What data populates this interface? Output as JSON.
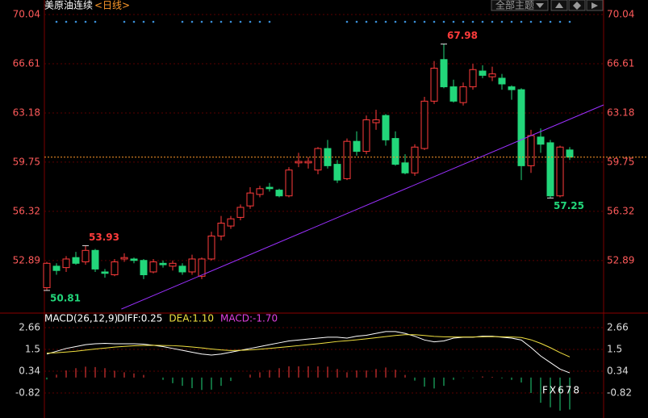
{
  "chart_data": [
    {
      "type": "candlestick",
      "title": "美原油连续",
      "subtitle": "<日线>",
      "ylim": [
        49.23,
        71.05
      ],
      "yticks": [
        52.89,
        56.32,
        59.75,
        63.18,
        66.61,
        70.04
      ],
      "up_color": "#ff3b3b",
      "down_color": "#22d67a",
      "open": [
        51.0,
        52.5,
        52.4,
        53.1,
        52.8,
        53.6,
        52.1,
        51.9,
        53.0,
        53.0,
        52.9,
        52.1,
        52.7,
        52.5,
        52.5,
        52.1,
        51.8,
        53.0,
        54.6,
        55.3,
        55.9,
        56.7,
        57.5,
        58.0,
        57.8,
        57.4,
        59.7,
        59.7,
        59.2,
        60.7,
        59.6,
        58.6,
        61.2,
        60.5,
        62.5,
        63.0,
        61.4,
        59.7,
        59.0,
        60.7,
        64.0,
        66.9,
        65.0,
        63.9,
        65.0,
        66.1,
        65.7,
        65.6,
        65.0,
        64.8,
        59.5,
        61.5,
        61.1,
        57.4,
        60.6
      ],
      "high": [
        52.8,
        52.7,
        53.2,
        53.5,
        53.93,
        53.7,
        52.3,
        53.0,
        53.4,
        53.1,
        53.0,
        53.0,
        52.9,
        52.9,
        52.7,
        53.3,
        53.1,
        54.9,
        56.0,
        56.0,
        56.8,
        58.0,
        58.1,
        58.3,
        57.9,
        59.4,
        60.4,
        60.1,
        60.8,
        61.3,
        59.9,
        61.4,
        61.9,
        63.0,
        63.4,
        63.1,
        61.9,
        60.3,
        61.0,
        64.3,
        66.8,
        67.98,
        65.5,
        65.3,
        66.6,
        66.5,
        66.4,
        65.9,
        65.1,
        64.9,
        62.0,
        62.1,
        61.3,
        60.9,
        60.8
      ],
      "low": [
        50.81,
        51.9,
        52.1,
        52.6,
        52.6,
        52.1,
        51.7,
        51.8,
        52.8,
        52.7,
        51.6,
        52.0,
        52.4,
        52.2,
        51.9,
        51.9,
        51.6,
        52.9,
        54.3,
        55.1,
        55.7,
        56.5,
        57.3,
        57.7,
        57.3,
        57.3,
        59.4,
        59.3,
        58.9,
        59.3,
        58.3,
        58.5,
        60.2,
        60.3,
        62.0,
        60.9,
        59.5,
        58.9,
        58.8,
        60.6,
        63.8,
        64.9,
        63.9,
        63.7,
        64.8,
        65.6,
        65.4,
        64.8,
        64.1,
        58.5,
        59.0,
        60.4,
        57.25,
        57.3,
        59.9
      ],
      "close": [
        52.7,
        52.2,
        53.0,
        52.7,
        53.6,
        52.3,
        52.0,
        52.8,
        53.1,
        52.9,
        51.9,
        52.8,
        52.6,
        52.7,
        52.1,
        53.0,
        53.0,
        54.6,
        55.5,
        55.8,
        56.6,
        57.6,
        57.9,
        57.9,
        57.4,
        59.2,
        59.8,
        59.8,
        60.7,
        59.5,
        58.5,
        61.2,
        60.5,
        62.7,
        62.7,
        61.3,
        59.6,
        59.0,
        60.8,
        64.0,
        66.3,
        65.0,
        64.0,
        65.0,
        66.2,
        65.8,
        65.9,
        65.2,
        64.8,
        59.5,
        61.6,
        61.0,
        57.4,
        60.8,
        60.1
      ],
      "extreme_labels": [
        67.98,
        57.25,
        53.93,
        50.81
      ],
      "trend_line": {
        "x": [
          7.7,
          57.5
        ],
        "y": [
          49.51,
          63.74
        ],
        "color": "#9b30ff"
      }
    },
    {
      "type": "macd",
      "title": "MACD(26,12,9)",
      "ylim": [
        -2.15,
        3.13
      ],
      "yticks": [
        -0.82,
        0.34,
        1.5,
        2.66
      ],
      "up_color": "#ff3b3b",
      "down_color": "#22d67a",
      "series": [
        {
          "name": "DIFF:0.25",
          "color": "#ffffff",
          "values": [
            1.25,
            1.4,
            1.55,
            1.65,
            1.75,
            1.8,
            1.82,
            1.8,
            1.8,
            1.8,
            1.78,
            1.72,
            1.65,
            1.55,
            1.45,
            1.35,
            1.25,
            1.2,
            1.25,
            1.35,
            1.45,
            1.55,
            1.65,
            1.75,
            1.85,
            1.95,
            2.0,
            2.05,
            2.1,
            2.15,
            2.15,
            2.1,
            2.2,
            2.25,
            2.35,
            2.45,
            2.45,
            2.35,
            2.2,
            2.0,
            1.9,
            1.95,
            2.1,
            2.15,
            2.15,
            2.2,
            2.2,
            2.15,
            2.1,
            2.0,
            1.6,
            1.15,
            0.8,
            0.45,
            0.25
          ]
        },
        {
          "name": "DEA:1.10",
          "color": "#f0e040",
          "values": [
            1.3,
            1.32,
            1.36,
            1.4,
            1.46,
            1.52,
            1.57,
            1.62,
            1.66,
            1.69,
            1.71,
            1.72,
            1.71,
            1.7,
            1.67,
            1.63,
            1.58,
            1.52,
            1.47,
            1.44,
            1.45,
            1.47,
            1.51,
            1.55,
            1.6,
            1.65,
            1.7,
            1.75,
            1.8,
            1.86,
            1.92,
            1.96,
            2.01,
            2.06,
            2.12,
            2.18,
            2.24,
            2.28,
            2.28,
            2.24,
            2.19,
            2.17,
            2.16,
            2.16,
            2.16,
            2.17,
            2.18,
            2.17,
            2.16,
            2.13,
            2.01,
            1.82,
            1.59,
            1.33,
            1.1
          ]
        },
        {
          "name": "MACD:-1.70",
          "color": "#e040e0",
          "values": [
            -0.1,
            0.16,
            0.38,
            0.5,
            0.58,
            0.56,
            0.5,
            0.36,
            0.28,
            0.22,
            0.14,
            0.0,
            -0.12,
            -0.3,
            -0.44,
            -0.56,
            -0.66,
            -0.64,
            -0.44,
            -0.18,
            0.0,
            0.16,
            0.28,
            0.4,
            0.5,
            0.6,
            0.6,
            0.6,
            0.6,
            0.58,
            0.46,
            0.28,
            0.38,
            0.38,
            0.46,
            0.54,
            0.42,
            0.14,
            -0.16,
            -0.48,
            -0.58,
            -0.44,
            -0.12,
            -0.02,
            -0.02,
            0.06,
            0.04,
            -0.04,
            -0.12,
            -0.26,
            -0.82,
            -1.34,
            -1.58,
            -1.76,
            -1.7
          ]
        }
      ]
    }
  ],
  "toolbar": {
    "theme_button": "全部主题"
  },
  "watermark": "FX678"
}
